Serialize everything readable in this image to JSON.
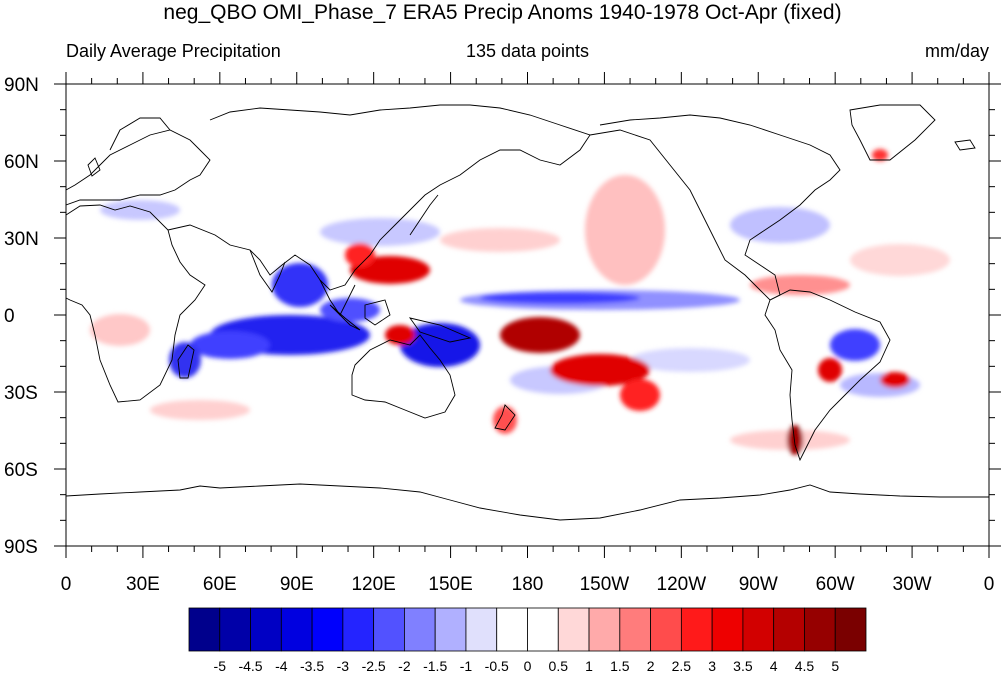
{
  "title": "neg_QBO OMI_Phase_7 ERA5 Precip Anoms 1940-1978 Oct-Apr (fixed)",
  "subtitle_left": "Daily Average Precipitation",
  "subtitle_center": "135 data points",
  "subtitle_right": "mm/day",
  "lat_labels": [
    "90N",
    "60N",
    "30N",
    "0",
    "30S",
    "60S",
    "90S"
  ],
  "lat_values": [
    90,
    60,
    30,
    0,
    -30,
    -60,
    -90
  ],
  "lon_labels": [
    "0",
    "30E",
    "60E",
    "90E",
    "120E",
    "150E",
    "180",
    "150W",
    "120W",
    "90W",
    "60W",
    "30W",
    "0"
  ],
  "lon_values": [
    0,
    30,
    60,
    90,
    120,
    150,
    180,
    210,
    240,
    270,
    300,
    330,
    360
  ],
  "colorbar": {
    "labels": [
      "-5",
      "-4.5",
      "-4",
      "-3.5",
      "-3",
      "-2.5",
      "-2",
      "-1.5",
      "-1",
      "-0.5",
      "0",
      "0.5",
      "1",
      "1.5",
      "2",
      "2.5",
      "3",
      "3.5",
      "4",
      "4.5",
      "5"
    ],
    "colors": [
      "#00008c",
      "#0000a8",
      "#0000c4",
      "#0000e0",
      "#0000fc",
      "#2424ff",
      "#5252ff",
      "#8080ff",
      "#b0b0ff",
      "#e0e0fc",
      "#ffffff",
      "#ffffff",
      "#ffd8d8",
      "#ffaaaa",
      "#ff7c7c",
      "#ff4c4c",
      "#ff1a1a",
      "#ee0000",
      "#d20000",
      "#b40000",
      "#960000",
      "#7a0000"
    ]
  },
  "colors": {
    "positive_strong": "#c00000",
    "positive_weak": "#ffb0b0",
    "negative_strong": "#0000d0",
    "negative_weak": "#b0b0ff",
    "coastline": "#000000"
  }
}
